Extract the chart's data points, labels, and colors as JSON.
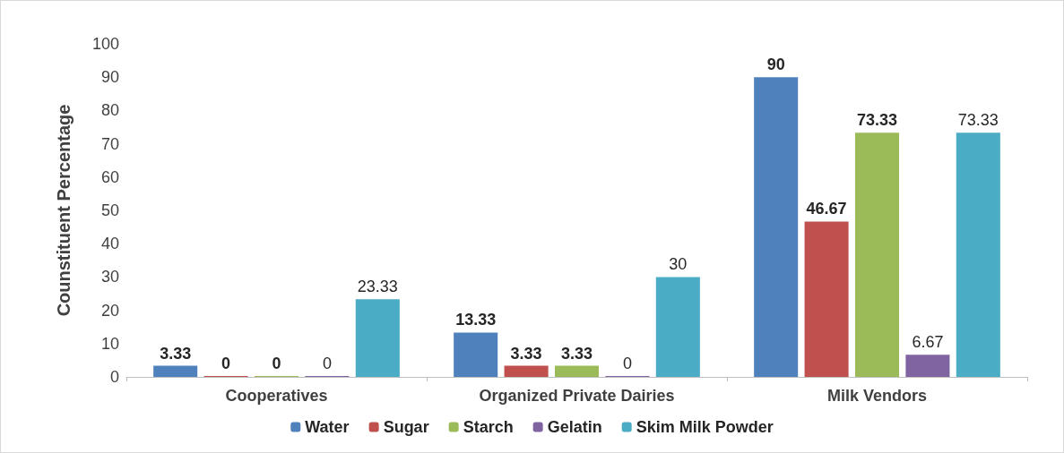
{
  "chart_data": {
    "type": "bar",
    "ylabel": "Counstituent Percentage",
    "categories": [
      "Cooperatives",
      "Organized Private Dairies",
      "Milk Vendors"
    ],
    "series": [
      {
        "name": "Water",
        "color": "#4f81bd",
        "values": [
          3.33,
          13.33,
          90
        ]
      },
      {
        "name": "Sugar",
        "color": "#c0504d",
        "values": [
          0,
          3.33,
          46.67
        ]
      },
      {
        "name": "Starch",
        "color": "#9bbb59",
        "values": [
          0,
          3.33,
          73.33
        ]
      },
      {
        "name": "Gelatin",
        "color": "#8064a2",
        "values": [
          0,
          0,
          6.67
        ]
      },
      {
        "name": "Skim Milk Powder",
        "color": "#4bacc6",
        "values": [
          23.33,
          30,
          73.33
        ]
      }
    ],
    "ylim": [
      0,
      100
    ],
    "yticks": [
      0,
      10,
      20,
      30,
      40,
      50,
      60,
      70,
      80,
      90,
      100
    ],
    "grid": false,
    "legend": "bottom",
    "data_labels": true
  }
}
